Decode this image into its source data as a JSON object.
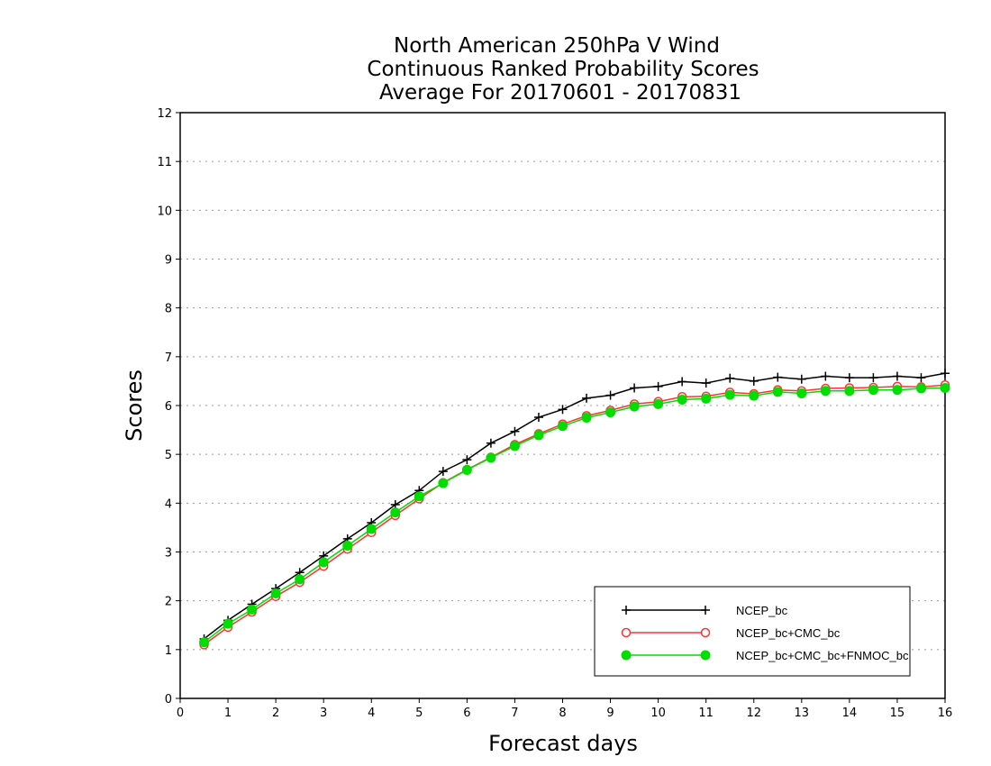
{
  "chart_data": {
    "type": "line",
    "title_lines": [
      "North American 250hPa V Wind",
      "Continuous Ranked Probability Scores",
      "Average For 20170601 - 20170831"
    ],
    "xlabel": "Forecast days",
    "ylabel": "Scores",
    "xlim": [
      0,
      16
    ],
    "ylim": [
      0,
      12
    ],
    "xticks": [
      "0",
      "1",
      "2",
      "3",
      "4",
      "5",
      "6",
      "7",
      "8",
      "9",
      "10",
      "11",
      "12",
      "13",
      "14",
      "15",
      "16"
    ],
    "yticks": [
      "0",
      "1",
      "2",
      "3",
      "4",
      "5",
      "6",
      "7",
      "8",
      "9",
      "10",
      "11",
      "12"
    ],
    "grid": "horizontal dotted",
    "legend_position": "bottom-right",
    "x": [
      0.5,
      1,
      1.5,
      2,
      2.5,
      3,
      3.5,
      4,
      4.5,
      5,
      5.5,
      6,
      6.5,
      7,
      7.5,
      8,
      8.5,
      9,
      9.5,
      10,
      10.5,
      11,
      11.5,
      12,
      12.5,
      13,
      13.5,
      14,
      14.5,
      15,
      15.5,
      16
    ],
    "series": [
      {
        "name": "NCEP_bc",
        "color": "#000000",
        "marker": "plus",
        "values": [
          1.22,
          1.6,
          1.93,
          2.25,
          2.58,
          2.92,
          3.27,
          3.6,
          3.97,
          4.26,
          4.65,
          4.89,
          5.23,
          5.47,
          5.76,
          5.92,
          6.15,
          6.21,
          6.36,
          6.39,
          6.49,
          6.46,
          6.56,
          6.5,
          6.58,
          6.54,
          6.6,
          6.57,
          6.57,
          6.6,
          6.57,
          6.66
        ]
      },
      {
        "name": "NCEP_bc+CMC_bc",
        "color": "#ff3333",
        "marker": "open-circle",
        "values": [
          1.1,
          1.46,
          1.77,
          2.09,
          2.38,
          2.71,
          3.06,
          3.4,
          3.75,
          4.09,
          4.42,
          4.69,
          4.94,
          5.2,
          5.42,
          5.62,
          5.79,
          5.9,
          6.03,
          6.08,
          6.18,
          6.19,
          6.27,
          6.24,
          6.32,
          6.3,
          6.35,
          6.36,
          6.37,
          6.39,
          6.38,
          6.42
        ]
      },
      {
        "name": "NCEP_bc+CMC_bc+FNMOC_bc",
        "color": "#00dd00",
        "marker": "filled-circle",
        "values": [
          1.15,
          1.53,
          1.82,
          2.15,
          2.44,
          2.79,
          3.13,
          3.47,
          3.81,
          4.14,
          4.41,
          4.68,
          4.93,
          5.17,
          5.39,
          5.58,
          5.75,
          5.86,
          5.98,
          6.03,
          6.12,
          6.14,
          6.22,
          6.2,
          6.28,
          6.25,
          6.3,
          6.3,
          6.32,
          6.32,
          6.35,
          6.36
        ]
      }
    ]
  }
}
